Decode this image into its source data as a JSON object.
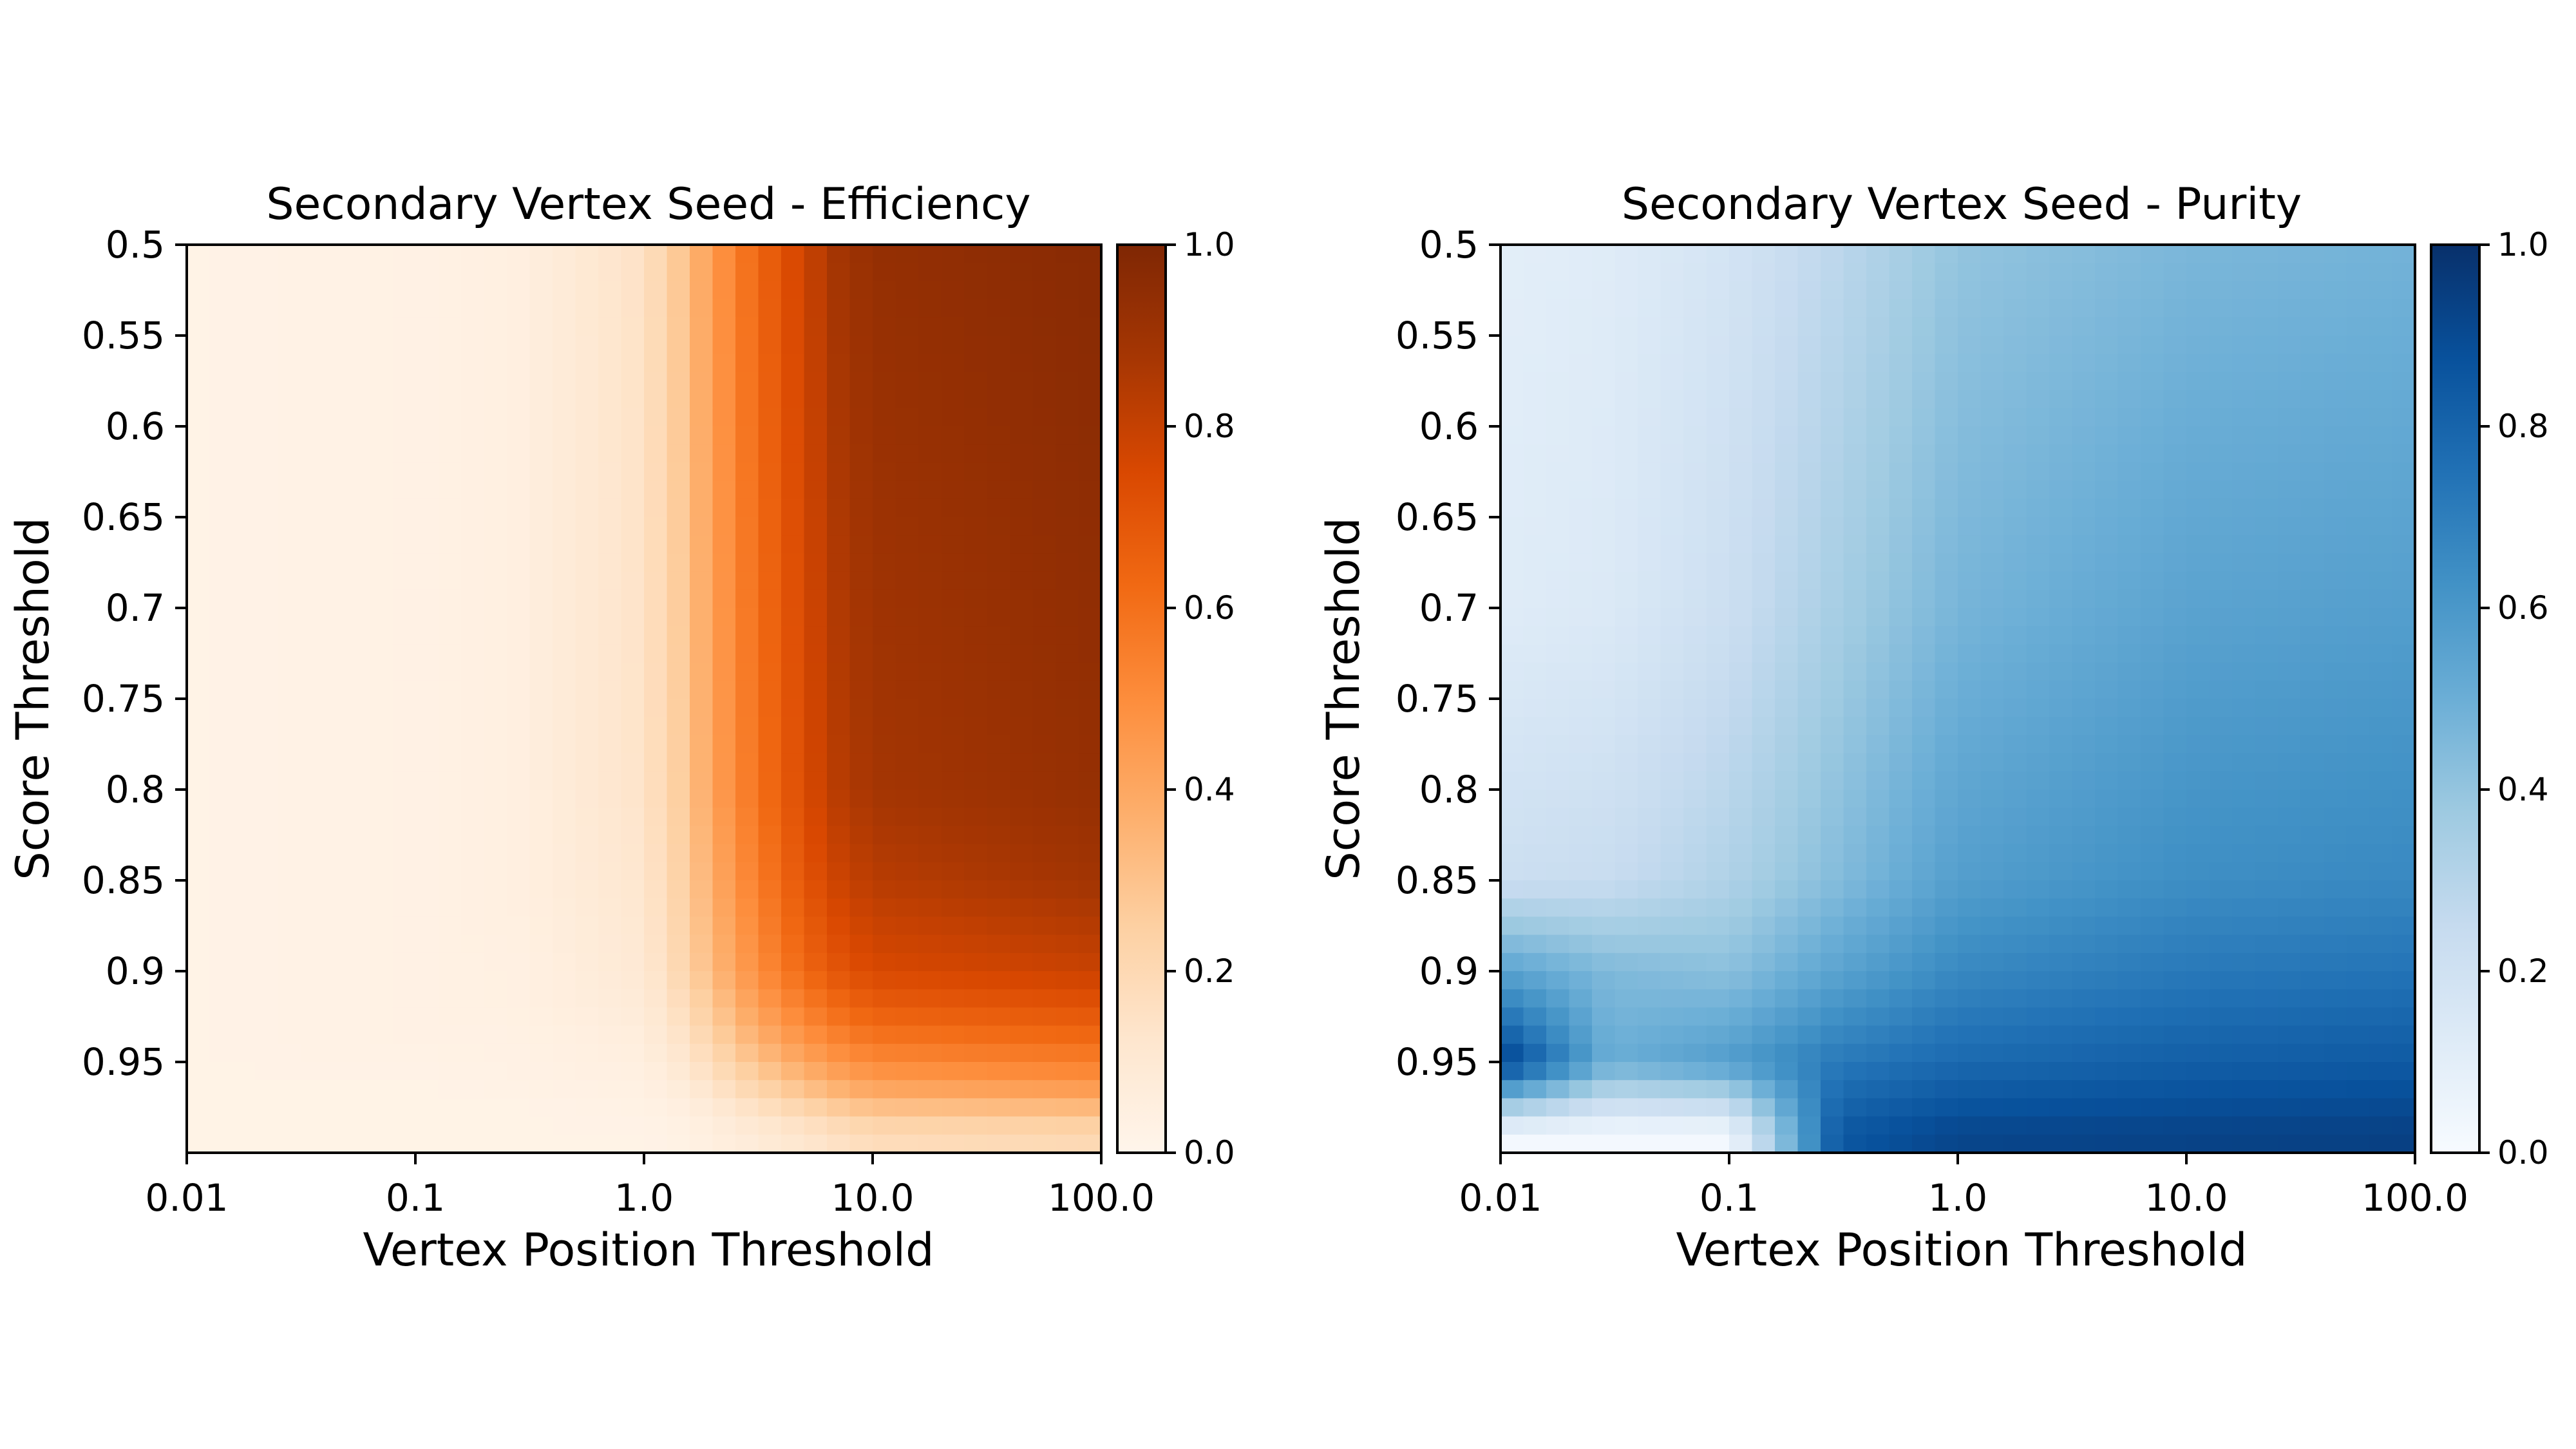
{
  "chart_data": [
    {
      "type": "heatmap",
      "title": "Secondary Vertex Seed - Efficiency",
      "xlabel": "Vertex Position Threshold",
      "ylabel": "Score Threshold",
      "x_scale": "log",
      "xlim": [
        0.01,
        100.0
      ],
      "ylim": [
        0.5,
        1.0
      ],
      "x_ticks": [
        0.01,
        0.1,
        1.0,
        10.0,
        100.0
      ],
      "x_tick_labels": [
        "0.01",
        "0.1",
        "1.0",
        "10.0",
        "100.0"
      ],
      "y_ticks": [
        0.5,
        0.55,
        0.6,
        0.65,
        0.7,
        0.75,
        0.8,
        0.85,
        0.9,
        0.95
      ],
      "y_tick_labels": [
        "0.5",
        "0.55",
        "0.6",
        "0.65",
        "0.7",
        "0.75",
        "0.8",
        "0.85",
        "0.9",
        "0.95"
      ],
      "colormap": "Oranges",
      "colormap_stops": [
        "#fff5eb",
        "#fee6ce",
        "#fdd0a2",
        "#fdae6b",
        "#fd8d3c",
        "#f16913",
        "#d94801",
        "#a63603",
        "#7f2704"
      ],
      "colorbar": {
        "min": 0.0,
        "max": 1.0,
        "ticks": [
          0.0,
          0.2,
          0.4,
          0.6,
          0.8,
          1.0
        ],
        "tick_labels": [
          "0.0",
          "0.2",
          "0.4",
          "0.6",
          "0.8",
          "1.0"
        ]
      },
      "grid": false,
      "x_centers": [
        0.01,
        0.1,
        0.3,
        1.0,
        1.5,
        2.0,
        3.0,
        5.0,
        7.0,
        10.0,
        100.0
      ],
      "y_centers": [
        0.5,
        0.8,
        0.85,
        0.9,
        0.92,
        0.94,
        0.96,
        0.975,
        0.99
      ],
      "values": [
        [
          0.02,
          0.03,
          0.05,
          0.15,
          0.3,
          0.45,
          0.62,
          0.78,
          0.88,
          0.93,
          0.97
        ],
        [
          0.02,
          0.03,
          0.05,
          0.14,
          0.27,
          0.42,
          0.58,
          0.74,
          0.83,
          0.88,
          0.93
        ],
        [
          0.02,
          0.03,
          0.05,
          0.12,
          0.25,
          0.38,
          0.54,
          0.7,
          0.78,
          0.83,
          0.89
        ],
        [
          0.02,
          0.03,
          0.04,
          0.1,
          0.22,
          0.33,
          0.48,
          0.63,
          0.7,
          0.75,
          0.79
        ],
        [
          0.02,
          0.03,
          0.04,
          0.08,
          0.18,
          0.28,
          0.42,
          0.55,
          0.62,
          0.67,
          0.71
        ],
        [
          0.02,
          0.03,
          0.03,
          0.06,
          0.14,
          0.22,
          0.34,
          0.46,
          0.52,
          0.57,
          0.61
        ],
        [
          0.02,
          0.02,
          0.03,
          0.04,
          0.09,
          0.15,
          0.24,
          0.34,
          0.4,
          0.45,
          0.49
        ],
        [
          0.02,
          0.02,
          0.02,
          0.03,
          0.05,
          0.09,
          0.15,
          0.22,
          0.27,
          0.31,
          0.34
        ],
        [
          0.02,
          0.02,
          0.02,
          0.02,
          0.03,
          0.05,
          0.08,
          0.12,
          0.15,
          0.18,
          0.2
        ]
      ]
    },
    {
      "type": "heatmap",
      "title": "Secondary Vertex Seed - Purity",
      "xlabel": "Vertex Position Threshold",
      "ylabel": "Score Threshold",
      "x_scale": "log",
      "xlim": [
        0.01,
        100.0
      ],
      "ylim": [
        0.5,
        1.0
      ],
      "x_ticks": [
        0.01,
        0.1,
        1.0,
        10.0,
        100.0
      ],
      "x_tick_labels": [
        "0.01",
        "0.1",
        "1.0",
        "10.0",
        "100.0"
      ],
      "y_ticks": [
        0.5,
        0.55,
        0.6,
        0.65,
        0.7,
        0.75,
        0.8,
        0.85,
        0.9,
        0.95
      ],
      "y_tick_labels": [
        "0.5",
        "0.55",
        "0.6",
        "0.65",
        "0.7",
        "0.75",
        "0.8",
        "0.85",
        "0.9",
        "0.95"
      ],
      "colormap": "Blues",
      "colormap_stops": [
        "#f7fbff",
        "#deebf7",
        "#c6dbef",
        "#9ecae1",
        "#6baed6",
        "#4292c6",
        "#2171b5",
        "#08519c",
        "#08306b"
      ],
      "colorbar": {
        "min": 0.0,
        "max": 1.0,
        "ticks": [
          0.0,
          0.2,
          0.4,
          0.6,
          0.8,
          1.0
        ],
        "tick_labels": [
          "0.0",
          "0.2",
          "0.4",
          "0.6",
          "0.8",
          "1.0"
        ]
      },
      "grid": false,
      "x_centers": [
        0.01,
        0.03,
        0.1,
        0.3,
        1.0,
        10.0,
        100.0
      ],
      "y_centers": [
        0.5,
        0.7,
        0.85,
        0.9,
        0.95,
        0.99
      ],
      "values": [
        [
          0.1,
          0.12,
          0.18,
          0.28,
          0.4,
          0.46,
          0.48
        ],
        [
          0.12,
          0.14,
          0.22,
          0.35,
          0.47,
          0.55,
          0.57
        ],
        [
          0.22,
          0.24,
          0.32,
          0.44,
          0.57,
          0.64,
          0.66
        ],
        [
          0.55,
          0.45,
          0.42,
          0.55,
          0.66,
          0.72,
          0.74
        ],
        [
          0.95,
          0.5,
          0.58,
          0.72,
          0.78,
          0.82,
          0.84
        ],
        [
          0.02,
          0.02,
          0.02,
          0.85,
          0.92,
          0.93,
          0.94
        ]
      ]
    }
  ]
}
